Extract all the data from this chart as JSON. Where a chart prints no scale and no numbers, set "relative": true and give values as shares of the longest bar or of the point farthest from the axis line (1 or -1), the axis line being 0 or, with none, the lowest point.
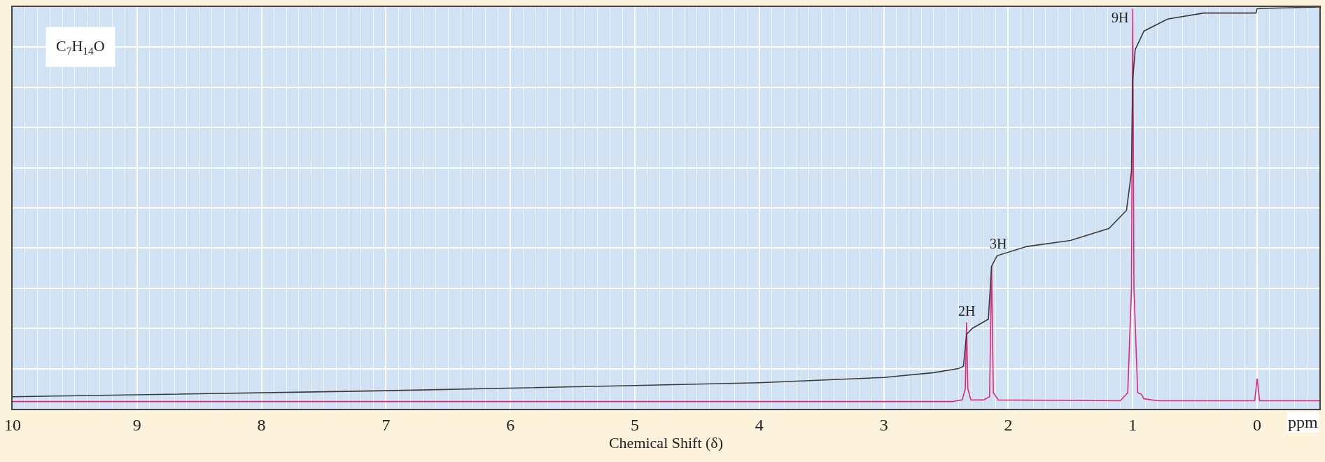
{
  "chart_data": {
    "type": "line",
    "relative": true,
    "xlabel": "Chemical Shift (δ)",
    "xlim": [
      10,
      -0.5
    ],
    "xticks": [
      10,
      9,
      8,
      7,
      6,
      5,
      4,
      3,
      2,
      1,
      0
    ],
    "grid": true,
    "marker": "none",
    "line_style": "solid",
    "series": [
      {
        "color": "#e0287a",
        "x": [
          10,
          2.45,
          2.37,
          2.345,
          2.335,
          2.325,
          2.3,
          2.2,
          2.15,
          2.134,
          2.12,
          2.08,
          1.1,
          1.04,
          1.01,
          1.0,
          0.99,
          0.96,
          0.93,
          0.91,
          0.8,
          0.02,
          0.0,
          -0.02,
          -0.5
        ],
        "values": [
          0.018,
          0.018,
          0.022,
          0.05,
          0.215,
          0.05,
          0.022,
          0.022,
          0.03,
          0.355,
          0.04,
          0.022,
          0.02,
          0.04,
          0.3,
          0.996,
          0.3,
          0.04,
          0.036,
          0.025,
          0.02,
          0.02,
          0.075,
          0.02,
          0.02
        ]
      },
      {
        "color": "#3a3a3a",
        "x": [
          10,
          7,
          5,
          4,
          3,
          2.6,
          2.4,
          2.36,
          2.335,
          2.29,
          2.16,
          2.134,
          2.09,
          1.85,
          1.5,
          1.19,
          1.05,
          1.01,
          1.0,
          0.98,
          0.91,
          0.72,
          0.43,
          0.01,
          0.0,
          -0.5
        ],
        "values": [
          0.03,
          0.045,
          0.058,
          0.065,
          0.078,
          0.09,
          0.1,
          0.106,
          0.185,
          0.2,
          0.223,
          0.355,
          0.381,
          0.404,
          0.419,
          0.449,
          0.494,
          0.59,
          0.82,
          0.894,
          0.94,
          0.97,
          0.985,
          0.985,
          0.996,
          1.0
        ]
      }
    ],
    "annotations": [
      {
        "text": "2H",
        "x": 2.335,
        "y": 0.215
      },
      {
        "text": "3H",
        "x": 2.08,
        "y": 0.381
      },
      {
        "text": "9H",
        "x": 1.0,
        "y": 0.996
      },
      "C$_{7}$H$_{14}$O",
      "ppm"
    ]
  }
}
